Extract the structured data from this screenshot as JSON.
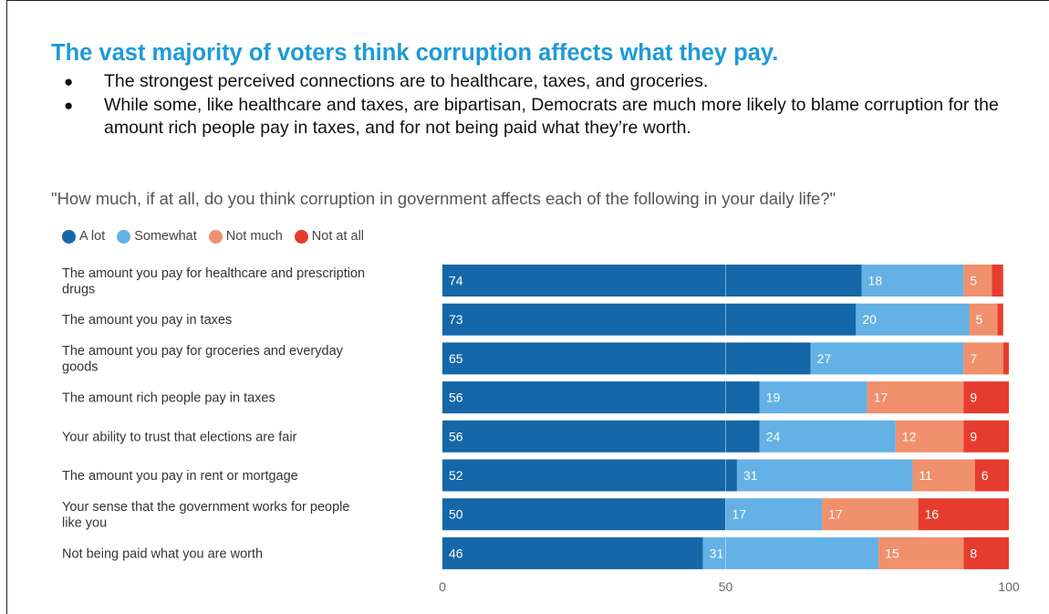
{
  "header": {
    "title": "The vast majority of voters think corruption affects what they pay.",
    "bullets": [
      "The strongest perceived connections are to healthcare, taxes, and groceries.",
      "While some, like healthcare and taxes, are bipartisan, Democrats are much more likely to blame corruption for the amount rich people pay in taxes, and for not being paid what they’re worth."
    ],
    "bullet_symbol": "●"
  },
  "chart_data": {
    "type": "bar",
    "orientation": "horizontal",
    "stacked": true,
    "title": "\"How much, if at all, do you think corruption in government affects each of the following in your daily life?\"",
    "categories": [
      [
        "The amount you pay for healthcare and prescription",
        "drugs"
      ],
      [
        "The amount you pay in taxes"
      ],
      [
        "The amount you pay for groceries and everyday",
        "goods"
      ],
      [
        "The amount rich people pay in taxes"
      ],
      [
        "Your ability to trust that elections are fair"
      ],
      [
        "The amount you pay in rent or mortgage"
      ],
      [
        "Your sense that the government works for people",
        "like you"
      ],
      [
        "Not being paid what you are worth"
      ]
    ],
    "series": [
      {
        "name": "A lot",
        "color": "#1567a8",
        "values": [
          74,
          73,
          65,
          56,
          56,
          52,
          50,
          46
        ]
      },
      {
        "name": "Somewhat",
        "color": "#63b1e5",
        "values": [
          18,
          20,
          27,
          19,
          24,
          31,
          17,
          31
        ]
      },
      {
        "name": "Not much",
        "color": "#f0906c",
        "values": [
          5,
          5,
          7,
          17,
          12,
          11,
          17,
          15
        ]
      },
      {
        "name": "Not at all",
        "color": "#e63c2f",
        "values": [
          2,
          1,
          1,
          9,
          9,
          6,
          16,
          8
        ]
      }
    ],
    "labeled_series": [
      0,
      1,
      2,
      3
    ],
    "label_threshold": 3,
    "xlim": [
      0,
      100
    ],
    "xticks": [
      0,
      50,
      100
    ],
    "legend": "top-left",
    "gridlines": [
      50
    ]
  }
}
